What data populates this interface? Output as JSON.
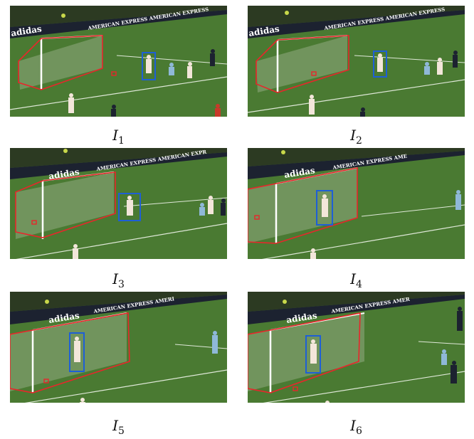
{
  "figure": {
    "frames": [
      {
        "id": "I1",
        "letter": "I",
        "index": "1",
        "ad_left": "adidas",
        "ad_right": "AMERICAN EXPRESS  AMERICAN EXPRESS"
      },
      {
        "id": "I2",
        "letter": "I",
        "index": "2",
        "ad_left": "adidas",
        "ad_right": "AMERICAN EXPRESS  AMERICAN EXPRESS"
      },
      {
        "id": "I3",
        "letter": "I",
        "index": "3",
        "ad_left": "adidas",
        "ad_right": "AMERICAN EXPRESS  AMERICAN EXPR"
      },
      {
        "id": "I4",
        "letter": "I",
        "index": "4",
        "ad_left": "adidas",
        "ad_right": "AMERICAN EXPRESS  AME"
      },
      {
        "id": "I5",
        "letter": "I",
        "index": "5",
        "ad_left": "adidas",
        "ad_right": "AMERICAN EXPRESS  AMERI"
      },
      {
        "id": "I6",
        "letter": "I",
        "index": "6",
        "ad_left": "adidas",
        "ad_right": "AMERICAN EXPRESS  AMER"
      }
    ],
    "colors": {
      "pitch": "#4a7a32",
      "pitch_dark": "#3a6426",
      "stands": "#2a3a20",
      "board": "#1c2230",
      "goal_annotation": "#e8262b",
      "player_annotation": "#1e5fd6",
      "kit_home": "#f3e6da",
      "kit_away": "#8fb8d8"
    }
  }
}
